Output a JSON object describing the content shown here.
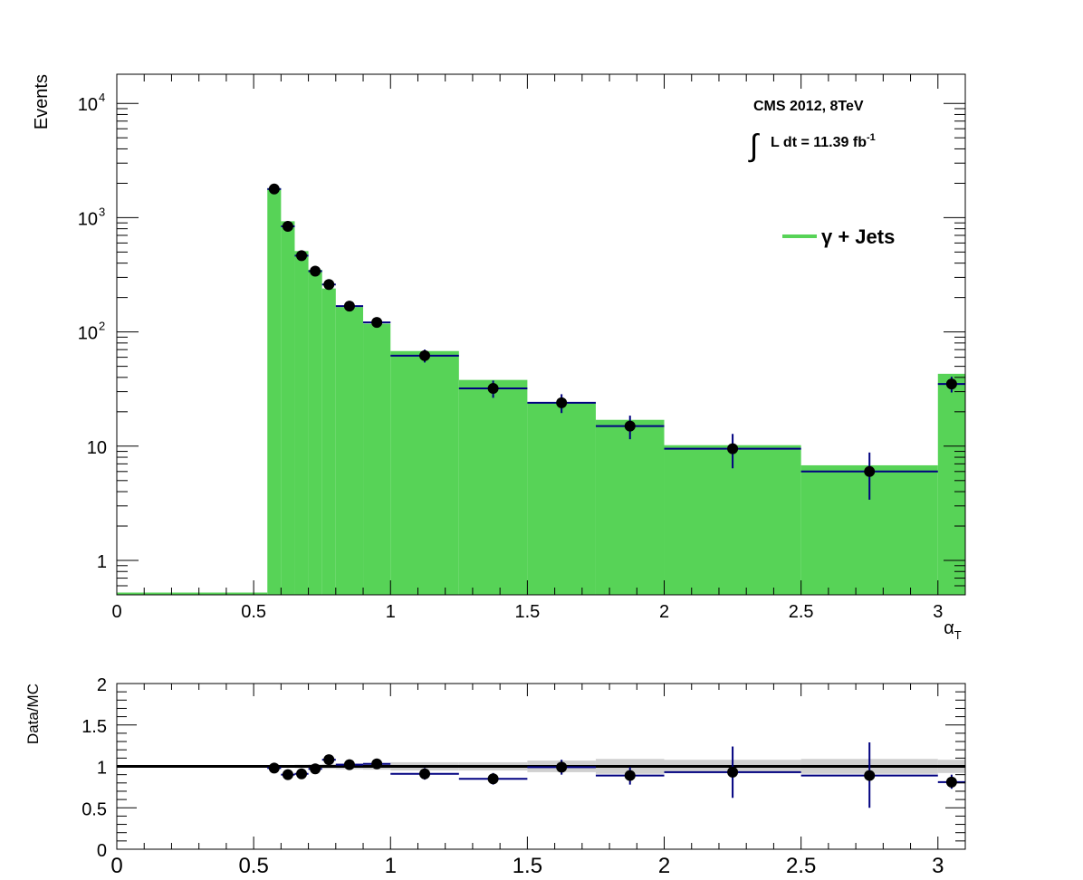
{
  "chart_data": [
    {
      "type": "histogram",
      "ylabel": "Events",
      "xlabel": "α",
      "xlabel_sub": "T",
      "xlim": [
        0,
        3.1
      ],
      "ylim": [
        0.5,
        18000
      ],
      "yscale": "log",
      "x_ticks": [
        {
          "value": 0,
          "label": "0"
        },
        {
          "value": 0.5,
          "label": "0.5"
        },
        {
          "value": 1,
          "label": "1"
        },
        {
          "value": 1.5,
          "label": "1.5"
        },
        {
          "value": 2,
          "label": "2"
        },
        {
          "value": 2.5,
          "label": "2.5"
        },
        {
          "value": 3,
          "label": "3"
        }
      ],
      "y_ticks": [
        {
          "value": 1,
          "label": "1",
          "exp": ""
        },
        {
          "value": 10,
          "label": "10",
          "exp": ""
        },
        {
          "value": 100,
          "label": "10",
          "exp": "2"
        },
        {
          "value": 1000,
          "label": "10",
          "exp": "3"
        },
        {
          "value": 10000,
          "label": "10",
          "exp": "4"
        }
      ],
      "annotation_title": "CMS 2012, 8TeV",
      "annotation_lumi_prefix": "∫",
      "annotation_lumi": "L dt = 11.39 fb",
      "annotation_lumi_exp": "-1",
      "legend_position": "top-right",
      "legend_label": "γ + Jets",
      "colors": {
        "mc_fill": "#57d357",
        "data_marker": "#000000",
        "error_bar": "#000080"
      },
      "mc_bins": [
        {
          "x0": 0.0,
          "x1": 0.55,
          "value": 0.5
        },
        {
          "x0": 0.55,
          "x1": 0.6,
          "value": 1810
        },
        {
          "x0": 0.6,
          "x1": 0.65,
          "value": 930
        },
        {
          "x0": 0.65,
          "x1": 0.7,
          "value": 510
        },
        {
          "x0": 0.7,
          "x1": 0.75,
          "value": 350
        },
        {
          "x0": 0.75,
          "x1": 0.8,
          "value": 240
        },
        {
          "x0": 0.8,
          "x1": 0.9,
          "value": 165
        },
        {
          "x0": 0.9,
          "x1": 1.0,
          "value": 118
        },
        {
          "x0": 1.0,
          "x1": 1.25,
          "value": 68
        },
        {
          "x0": 1.25,
          "x1": 1.5,
          "value": 38
        },
        {
          "x0": 1.5,
          "x1": 1.75,
          "value": 24
        },
        {
          "x0": 1.75,
          "x1": 2.0,
          "value": 17
        },
        {
          "x0": 2.0,
          "x1": 2.5,
          "value": 10.2
        },
        {
          "x0": 2.5,
          "x1": 3.0,
          "value": 6.8
        },
        {
          "x0": 3.0,
          "x1": 3.1,
          "value": 43
        }
      ],
      "data_points": [
        {
          "x": 0.575,
          "x0": 0.55,
          "x1": 0.6,
          "y": 1780,
          "ylo": 1740,
          "yhi": 1820
        },
        {
          "x": 0.625,
          "x0": 0.6,
          "x1": 0.65,
          "y": 840,
          "ylo": 812,
          "yhi": 868
        },
        {
          "x": 0.675,
          "x0": 0.65,
          "x1": 0.7,
          "y": 465,
          "ylo": 444,
          "yhi": 486
        },
        {
          "x": 0.725,
          "x0": 0.7,
          "x1": 0.75,
          "y": 340,
          "ylo": 322,
          "yhi": 358
        },
        {
          "x": 0.775,
          "x0": 0.75,
          "x1": 0.8,
          "y": 260,
          "ylo": 244,
          "yhi": 276
        },
        {
          "x": 0.85,
          "x0": 0.8,
          "x1": 0.9,
          "y": 168,
          "ylo": 155,
          "yhi": 181
        },
        {
          "x": 0.95,
          "x0": 0.9,
          "x1": 1.0,
          "y": 121,
          "ylo": 110,
          "yhi": 132
        },
        {
          "x": 1.125,
          "x0": 1.0,
          "x1": 1.25,
          "y": 62,
          "ylo": 54,
          "yhi": 70
        },
        {
          "x": 1.375,
          "x0": 1.25,
          "x1": 1.5,
          "y": 32,
          "ylo": 26.5,
          "yhi": 37.5
        },
        {
          "x": 1.625,
          "x0": 1.5,
          "x1": 1.75,
          "y": 24,
          "ylo": 19.5,
          "yhi": 28.5
        },
        {
          "x": 1.875,
          "x0": 1.75,
          "x1": 2.0,
          "y": 15,
          "ylo": 11.5,
          "yhi": 18.5
        },
        {
          "x": 2.25,
          "x0": 2.0,
          "x1": 2.5,
          "y": 9.5,
          "ylo": 6.4,
          "yhi": 12.8
        },
        {
          "x": 2.75,
          "x0": 2.5,
          "x1": 3.0,
          "y": 6.0,
          "ylo": 3.4,
          "yhi": 8.8
        },
        {
          "x": 3.05,
          "x0": 3.0,
          "x1": 3.1,
          "y": 35,
          "ylo": 29.5,
          "yhi": 40.5
        }
      ]
    },
    {
      "type": "ratio",
      "ylabel": "Data/MC",
      "xlim": [
        0,
        3.1
      ],
      "ylim": [
        0,
        2
      ],
      "reference_line": 1,
      "x_ticks": [
        {
          "value": 0,
          "label": "0"
        },
        {
          "value": 0.5,
          "label": "0.5"
        },
        {
          "value": 1,
          "label": "1"
        },
        {
          "value": 1.5,
          "label": "1.5"
        },
        {
          "value": 2,
          "label": "2"
        },
        {
          "value": 2.5,
          "label": "2.5"
        },
        {
          "value": 3,
          "label": "3"
        }
      ],
      "y_ticks": [
        {
          "value": 0,
          "label": "0"
        },
        {
          "value": 0.5,
          "label": "0.5"
        },
        {
          "value": 1,
          "label": "1"
        },
        {
          "value": 1.5,
          "label": "1.5"
        },
        {
          "value": 2,
          "label": "2"
        }
      ],
      "mc_uncertainty_band": [
        {
          "x0": 0.55,
          "x1": 0.6,
          "lo": 0.99,
          "hi": 1.01
        },
        {
          "x0": 0.6,
          "x1": 0.65,
          "lo": 0.985,
          "hi": 1.015
        },
        {
          "x0": 0.65,
          "x1": 0.7,
          "lo": 0.98,
          "hi": 1.02
        },
        {
          "x0": 0.7,
          "x1": 0.75,
          "lo": 0.975,
          "hi": 1.025
        },
        {
          "x0": 0.75,
          "x1": 0.8,
          "lo": 0.97,
          "hi": 1.03
        },
        {
          "x0": 0.8,
          "x1": 0.9,
          "lo": 0.965,
          "hi": 1.035
        },
        {
          "x0": 0.9,
          "x1": 1.0,
          "lo": 0.96,
          "hi": 1.04
        },
        {
          "x0": 1.0,
          "x1": 1.25,
          "lo": 0.95,
          "hi": 1.05
        },
        {
          "x0": 1.25,
          "x1": 1.5,
          "lo": 0.95,
          "hi": 1.05
        },
        {
          "x0": 1.5,
          "x1": 1.75,
          "lo": 0.93,
          "hi": 1.07
        },
        {
          "x0": 1.75,
          "x1": 2.0,
          "lo": 0.91,
          "hi": 1.09
        },
        {
          "x0": 2.0,
          "x1": 2.5,
          "lo": 0.92,
          "hi": 1.08
        },
        {
          "x0": 2.5,
          "x1": 3.0,
          "lo": 0.91,
          "hi": 1.09
        },
        {
          "x0": 3.0,
          "x1": 3.1,
          "lo": 0.92,
          "hi": 1.08
        }
      ],
      "data_points": [
        {
          "x": 0.575,
          "x0": 0.55,
          "x1": 0.6,
          "y": 0.98,
          "ylo": 0.96,
          "yhi": 1.0
        },
        {
          "x": 0.625,
          "x0": 0.6,
          "x1": 0.65,
          "y": 0.9,
          "ylo": 0.88,
          "yhi": 0.93
        },
        {
          "x": 0.675,
          "x0": 0.65,
          "x1": 0.7,
          "y": 0.91,
          "ylo": 0.88,
          "yhi": 0.94
        },
        {
          "x": 0.725,
          "x0": 0.7,
          "x1": 0.75,
          "y": 0.97,
          "ylo": 0.93,
          "yhi": 1.01
        },
        {
          "x": 0.775,
          "x0": 0.75,
          "x1": 0.8,
          "y": 1.08,
          "ylo": 1.04,
          "yhi": 1.12
        },
        {
          "x": 0.85,
          "x0": 0.8,
          "x1": 0.9,
          "y": 1.02,
          "ylo": 0.97,
          "yhi": 1.07
        },
        {
          "x": 0.95,
          "x0": 0.9,
          "x1": 1.0,
          "y": 1.03,
          "ylo": 0.97,
          "yhi": 1.09
        },
        {
          "x": 1.125,
          "x0": 1.0,
          "x1": 1.25,
          "y": 0.91,
          "ylo": 0.84,
          "yhi": 0.98
        },
        {
          "x": 1.375,
          "x0": 1.25,
          "x1": 1.5,
          "y": 0.85,
          "ylo": 0.78,
          "yhi": 0.92
        },
        {
          "x": 1.625,
          "x0": 1.5,
          "x1": 1.75,
          "y": 0.99,
          "ylo": 0.9,
          "yhi": 1.08
        },
        {
          "x": 1.875,
          "x0": 1.75,
          "x1": 2.0,
          "y": 0.89,
          "ylo": 0.78,
          "yhi": 0.99
        },
        {
          "x": 2.25,
          "x0": 2.0,
          "x1": 2.5,
          "y": 0.93,
          "ylo": 0.62,
          "yhi": 1.24
        },
        {
          "x": 2.75,
          "x0": 2.5,
          "x1": 3.0,
          "y": 0.89,
          "ylo": 0.5,
          "yhi": 1.29
        },
        {
          "x": 3.05,
          "x0": 3.0,
          "x1": 3.1,
          "y": 0.81,
          "ylo": 0.73,
          "yhi": 0.9
        }
      ]
    }
  ]
}
